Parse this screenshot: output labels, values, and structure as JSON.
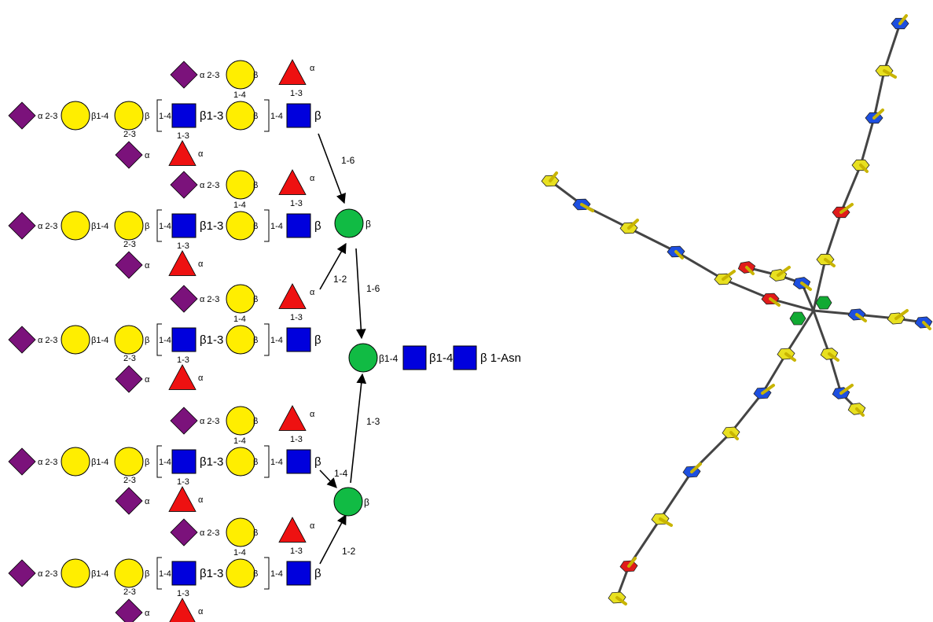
{
  "colors": {
    "sialic_acid": "#7b127b",
    "galactose": "#ffee00",
    "glcnac": "#0000dd",
    "fucose": "#ee1111",
    "mannose": "#11bb44"
  },
  "branch_labels": {
    "sia_link": "α 2-3",
    "gal_beta_link": "β1-4",
    "gal_beta": "β",
    "gal_beta2": "β",
    "sub_2_3": "2-3",
    "alpha": "α",
    "rep_open": "1-4",
    "glcnac_link": "β1-3",
    "rep_close": "1-4",
    "fuc_1_3": "1-3",
    "gal_1_4": "1-4",
    "glcnac_beta": "β"
  },
  "core_links": {
    "l1": "1-6",
    "l2": "1-2",
    "l3": "1-6",
    "l4": "1-3",
    "l5": "1-4",
    "l6": "1-2"
  },
  "core_labels": {
    "man_beta": "β",
    "core_link1": "β1-4",
    "core_link2": "β1-4",
    "asn": "β 1-Asn"
  }
}
